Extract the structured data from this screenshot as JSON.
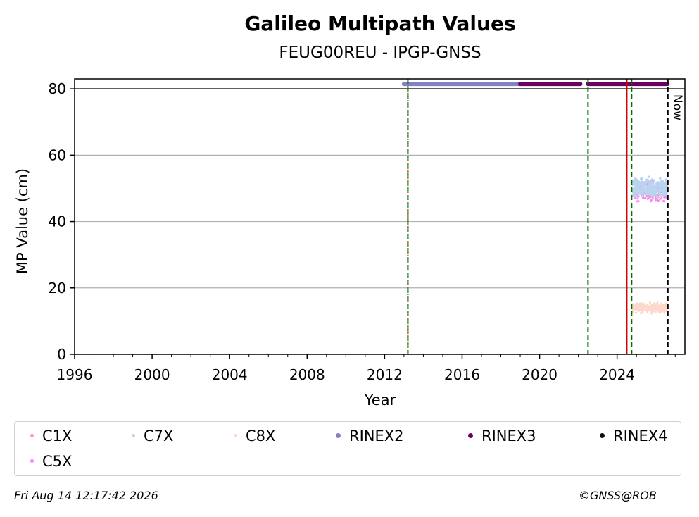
{
  "chart_data": {
    "type": "scatter",
    "title": "Galileo Multipath Values",
    "subtitle": "FEUG00REU - IPGP-GNSS",
    "xlabel": "Year",
    "ylabel": "MP Value (cm)",
    "xlim": [
      1996,
      2027.5
    ],
    "ylim": [
      0,
      83
    ],
    "x_ticks": [
      1996,
      2000,
      2004,
      2008,
      2012,
      2016,
      2020,
      2024
    ],
    "y_ticks": [
      0,
      20,
      40,
      60,
      80
    ],
    "grid": "horizontal",
    "series": [
      {
        "name": "C1X",
        "color": "#f4a3a3",
        "x_range": [
          2024.8,
          2026.6
        ],
        "y_range": [
          46,
          52
        ]
      },
      {
        "name": "C7X",
        "color": "#b8d4ee",
        "x_range": [
          2024.8,
          2026.6
        ],
        "y_range": [
          46,
          54
        ]
      },
      {
        "name": "C8X",
        "color": "#fcd9cc",
        "x_range": [
          2024.8,
          2026.6
        ],
        "y_range": [
          12,
          16
        ]
      },
      {
        "name": "RINEX2",
        "color": "#8280c6",
        "y": 81.5,
        "x_range": [
          2013.0,
          2019.0
        ]
      },
      {
        "name": "RINEX3",
        "color": "#6a005f",
        "y": 81.5,
        "x_ranges": [
          [
            2019.0,
            2022.1
          ],
          [
            2022.5,
            2026.6
          ]
        ]
      },
      {
        "name": "RINEX4",
        "color": "#1a0a1a",
        "y": 81.5,
        "x_ranges": []
      },
      {
        "name": "C5X",
        "color": "#ff80ff",
        "x_range": [
          2024.8,
          2026.6
        ],
        "y_range": [
          45,
          53
        ]
      }
    ],
    "reference_line": {
      "y": 80
    },
    "vertical_lines": [
      {
        "x": 2013.2,
        "color": "#d00000",
        "style": "dotted"
      },
      {
        "x": 2013.2,
        "color": "#007000",
        "style": "dashed"
      },
      {
        "x": 2022.5,
        "color": "#007000",
        "style": "dashed"
      },
      {
        "x": 2024.5,
        "color": "#d00000",
        "style": "solid"
      },
      {
        "x": 2024.75,
        "color": "#007000",
        "style": "dashed"
      },
      {
        "x": 2026.62,
        "color": "#000000",
        "style": "dashed",
        "label": "Now"
      }
    ]
  },
  "legend": {
    "placement": "bottom",
    "items": [
      {
        "label": "C1X",
        "color": "#f4a3a3",
        "marker": "x"
      },
      {
        "label": "C7X",
        "color": "#b8d4ee",
        "marker": "x"
      },
      {
        "label": "C8X",
        "color": "#fcd9cc",
        "marker": "x"
      },
      {
        "label": "RINEX2",
        "color": "#8280c6",
        "marker": "dot"
      },
      {
        "label": "RINEX3",
        "color": "#6a005f",
        "marker": "dot"
      },
      {
        "label": "RINEX4",
        "color": "#1a0a1a",
        "marker": "dot"
      },
      {
        "label": "C5X",
        "color": "#ff80ff",
        "marker": "x"
      }
    ]
  },
  "footer": {
    "timestamp": "Fri Aug 14 12:17:42 2026",
    "credit": "©GNSS@ROB"
  }
}
